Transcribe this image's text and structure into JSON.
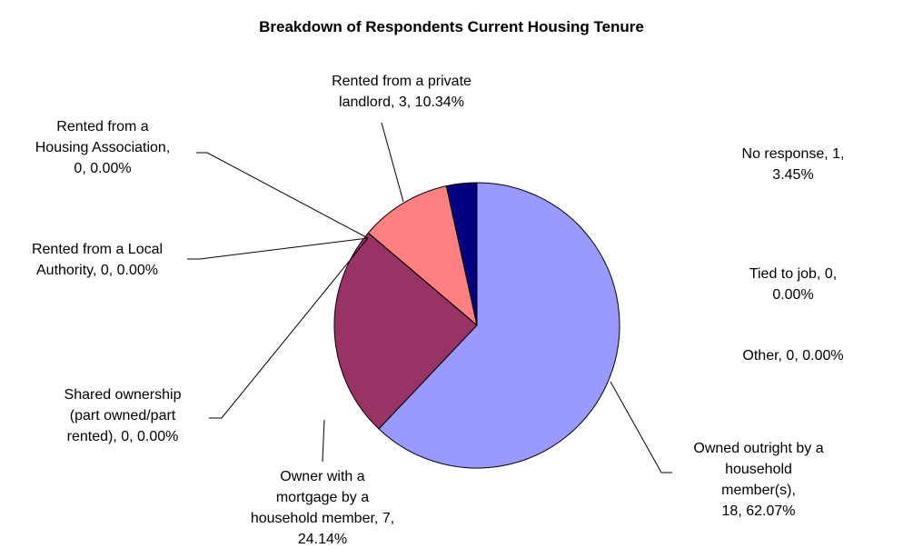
{
  "chart_data": {
    "type": "pie",
    "title": "Breakdown of Respondents Current Housing Tenure",
    "values": [
      18,
      7,
      0,
      0,
      0,
      3,
      1,
      0,
      0
    ],
    "value_labels": [
      "Owned outright by a\nhousehold member(s),\n18, 62.07%",
      "Owner with a\nmortgage by a\nhousehold member, 7,\n24.14%",
      "Shared ownership\n(part owned/part\nrented), 0, 0.00%",
      "Rented from a Local\nAuthority, 0, 0.00%",
      "Rented from a\nHousing Association,\n0, 0.00%",
      "Rented from a private\nlandlord, 3, 10.34%",
      "No response, 1,\n3.45%",
      "Tied to job, 0, 0.00%",
      "Other, 0, 0.00%"
    ],
    "colors": [
      "#9999ff",
      "#993366",
      "#ffffcc",
      "#ccffff",
      "#660066",
      "#ff8080",
      "#000080",
      "#0066cc",
      "#ccccff"
    ]
  }
}
